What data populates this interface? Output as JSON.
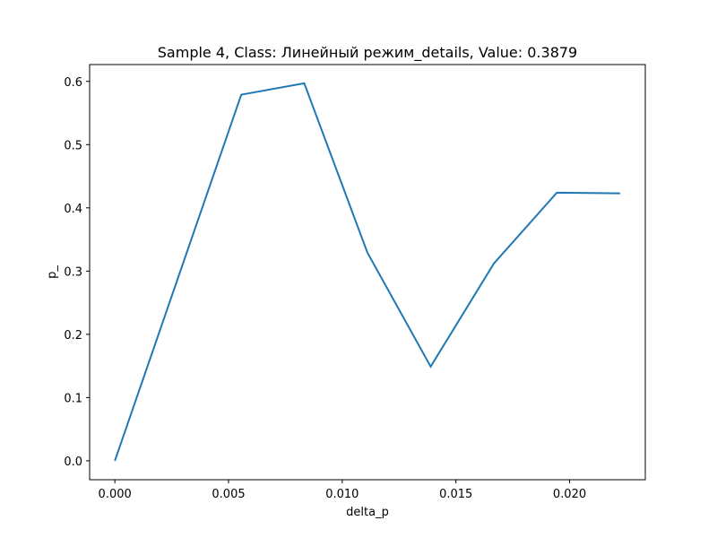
{
  "chart_data": {
    "type": "line",
    "title": "Sample 4, Class: Линейный режим_details, Value: 0.3879",
    "xlabel": "delta_p",
    "ylabel": "p_",
    "xlim": [
      -0.00111,
      0.02333
    ],
    "ylim": [
      -0.0299,
      0.6266
    ],
    "xticks": [
      0.0,
      0.005,
      0.01,
      0.015,
      0.02
    ],
    "xtick_labels": [
      "0.000",
      "0.005",
      "0.010",
      "0.015",
      "0.020"
    ],
    "yticks": [
      0.0,
      0.1,
      0.2,
      0.3,
      0.4,
      0.5,
      0.6
    ],
    "ytick_labels": [
      "0.0",
      "0.1",
      "0.2",
      "0.3",
      "0.4",
      "0.5",
      "0.6"
    ],
    "grid": false,
    "series": [
      {
        "color": "#1f77b4",
        "x": [
          0.0,
          0.00556,
          0.00833,
          0.01111,
          0.01389,
          0.01667,
          0.01944,
          0.02222
        ],
        "y": [
          0.0,
          0.579,
          0.597,
          0.329,
          0.149,
          0.312,
          0.424,
          0.423
        ]
      }
    ]
  }
}
